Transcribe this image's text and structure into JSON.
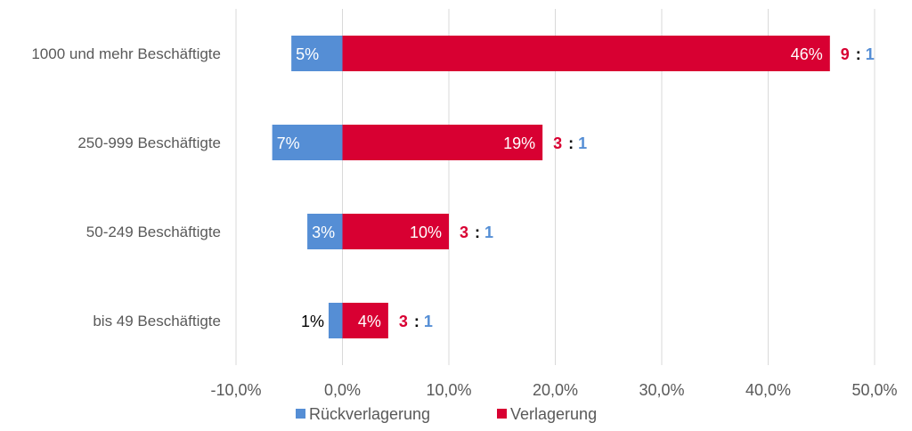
{
  "chart_data": {
    "type": "bar",
    "orientation": "horizontal",
    "stacked": "diverging",
    "categories": [
      "1000 und mehr Beschäftigte",
      "250-999 Beschäftigte",
      "50-249 Beschäftigte",
      "bis 49 Beschäftigte"
    ],
    "series": [
      {
        "name": "Rückverlagerung",
        "color": "#558ED5",
        "values": [
          -4.8,
          -6.6,
          -3.3,
          -1.3
        ],
        "labels": [
          "5%",
          "7%",
          "3%",
          "1%"
        ]
      },
      {
        "name": "Verlagerung",
        "color": "#D80032",
        "values": [
          45.8,
          18.8,
          10.0,
          4.3
        ],
        "labels": [
          "46%",
          "19%",
          "10%",
          "4%"
        ]
      }
    ],
    "ratios": [
      {
        "left": "9",
        "sep": ":",
        "right": "1"
      },
      {
        "left": "3",
        "sep": ":",
        "right": "1"
      },
      {
        "left": "3",
        "sep": ":",
        "right": "1"
      },
      {
        "left": "3",
        "sep": ":",
        "right": "1"
      }
    ],
    "xlim": [
      -10,
      50
    ],
    "xticks": [
      -10,
      0,
      10,
      20,
      30,
      40,
      50
    ],
    "xtick_labels": [
      "-10,0%",
      "0,0%",
      "10,0%",
      "20,0%",
      "30,0%",
      "40,0%",
      "50,0%"
    ],
    "grid": "vertical",
    "legend": "bottom",
    "title": "",
    "xlabel": "",
    "ylabel": ""
  }
}
